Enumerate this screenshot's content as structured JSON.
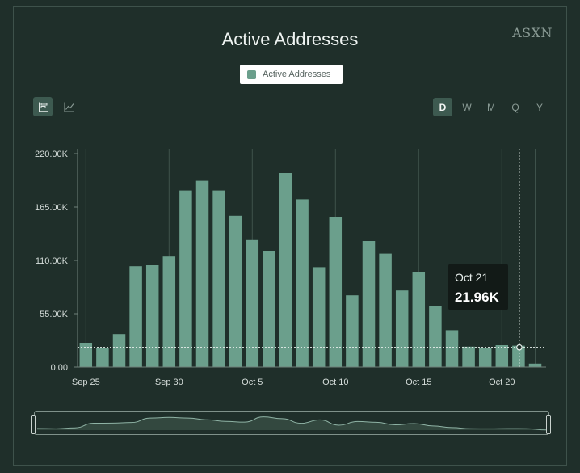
{
  "brand": "ASXN",
  "toolbar": {
    "chart_types": [
      {
        "name": "bar-chart-icon",
        "active": true
      },
      {
        "name": "line-chart-icon",
        "active": false
      }
    ],
    "periods": [
      {
        "label": "D",
        "active": true
      },
      {
        "label": "W",
        "active": false
      },
      {
        "label": "M",
        "active": false
      },
      {
        "label": "Q",
        "active": false
      },
      {
        "label": "Y",
        "active": false
      }
    ]
  },
  "tooltip": {
    "date": "Oct 21",
    "value": "21.96K"
  },
  "colors": {
    "bar": "#6b9f8c",
    "background": "#1f2f2a"
  },
  "chart_data": {
    "type": "bar",
    "title": "Active Addresses",
    "legend": [
      "Active Addresses"
    ],
    "legend_position": "top-center",
    "categories": [
      "Sep 25",
      "Sep 26",
      "Sep 27",
      "Sep 28",
      "Sep 29",
      "Sep 30",
      "Oct 1",
      "Oct 2",
      "Oct 3",
      "Oct 4",
      "Oct 5",
      "Oct 6",
      "Oct 7",
      "Oct 8",
      "Oct 9",
      "Oct 10",
      "Oct 11",
      "Oct 12",
      "Oct 13",
      "Oct 14",
      "Oct 15",
      "Oct 16",
      "Oct 17",
      "Oct 18",
      "Oct 19",
      "Oct 20",
      "Oct 21",
      "Oct 22"
    ],
    "x_tick_labels": [
      "Sep 25",
      "Sep 30",
      "Oct 5",
      "Oct 10",
      "Oct 15",
      "Oct 20"
    ],
    "series": [
      {
        "name": "Active Addresses",
        "values": [
          25000,
          20000,
          34000,
          104000,
          105000,
          114000,
          182000,
          192000,
          182000,
          156000,
          131000,
          120000,
          200000,
          173000,
          103000,
          155000,
          74000,
          130000,
          117000,
          79000,
          98000,
          63000,
          38000,
          21000,
          20000,
          22500,
          21960,
          3500
        ]
      }
    ],
    "y_ticks": [
      "0.00",
      "55.00K",
      "110.00K",
      "165.00K",
      "220.00K"
    ],
    "ylim": [
      0,
      220000
    ],
    "grid": "vertical",
    "highlight": {
      "category": "Oct 21",
      "value": 21960
    }
  }
}
